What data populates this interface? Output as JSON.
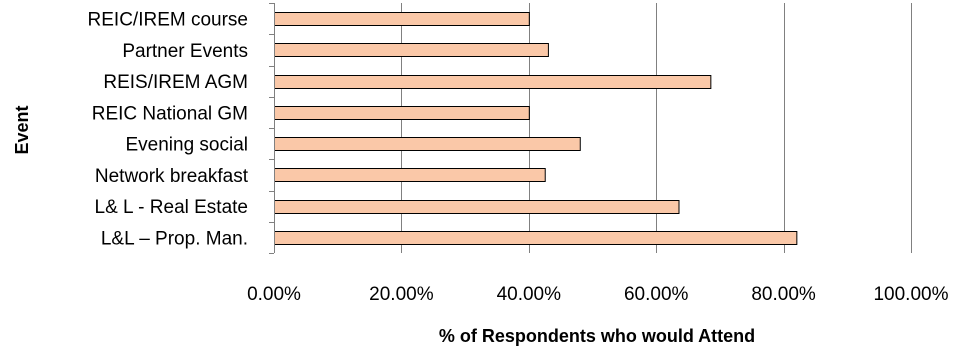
{
  "chart_data": {
    "type": "bar",
    "orientation": "horizontal",
    "categories": [
      "REIC/IREM course",
      "Partner Events",
      "REIS/IREM AGM",
      "REIC National GM",
      "Evening social",
      "Network breakfast",
      "L& L  - Real Estate",
      "L&L – Prop. Man."
    ],
    "values": [
      0.4,
      0.43,
      0.685,
      0.4,
      0.48,
      0.425,
      0.635,
      0.82
    ],
    "xlabel": "% of Respondents who would Attend",
    "ylabel": "Event",
    "xlim": [
      0,
      1
    ],
    "xticks": [
      0,
      0.2,
      0.4,
      0.6,
      0.8,
      1.0
    ],
    "xtick_labels": [
      "0.00%",
      "20.00%",
      "40.00%",
      "60.00%",
      "80.00%",
      "100.00%"
    ],
    "grid": "vertical major",
    "legend": "none",
    "bar_color": "#FAC8A8"
  }
}
